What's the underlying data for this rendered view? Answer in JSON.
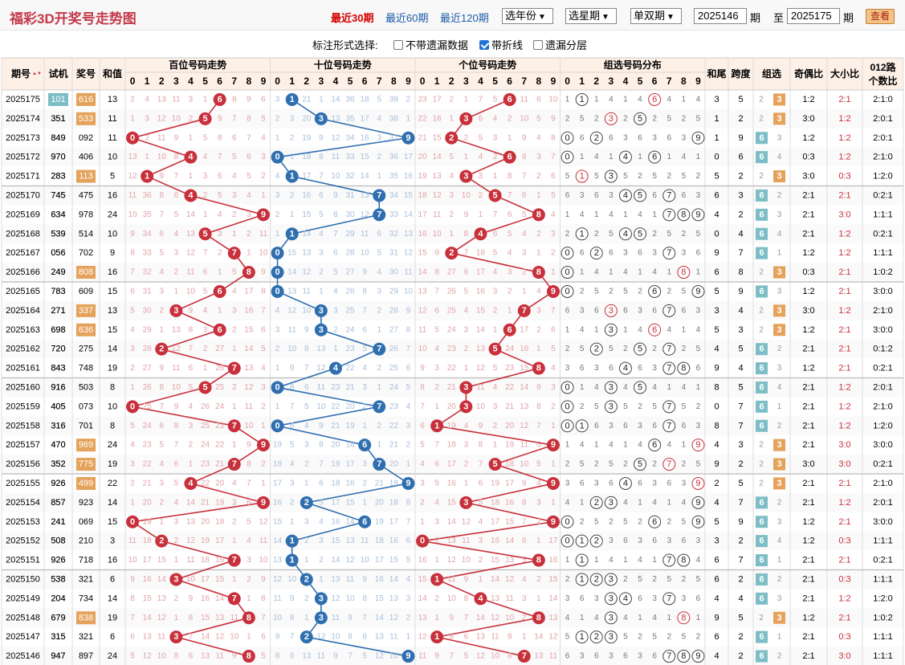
{
  "header": {
    "title": "福彩3D开奖号走势图",
    "quick": [
      "最近30期",
      "最近60期",
      "最近120期"
    ],
    "year_select": "选年份",
    "week_select": "选星期",
    "parity_select": "单双期",
    "from_issue": "2025146",
    "issue_label": "期",
    "to_label": "至",
    "to_issue": "2025175",
    "query_label": "查看"
  },
  "options": {
    "label": "标注形式选择:",
    "items": [
      {
        "label": "不带遗漏数据",
        "checked": false
      },
      {
        "label": "带折线",
        "checked": true
      },
      {
        "label": "遗漏分层",
        "checked": false
      }
    ]
  },
  "columns": {
    "issue": "期号",
    "test": "试机",
    "prize": "奖号",
    "sum": "和值",
    "hundreds": "百位号码走势",
    "tens": "十位号码走势",
    "units": "个位号码走势",
    "group": "组选号码分布",
    "tail": "和尾",
    "span": "跨度",
    "grouptype": "组选",
    "oddeven": "奇偶比",
    "bigsmall": "大小比",
    "road": "012路",
    "road2": "个数比"
  },
  "colors": {
    "red": "#c8303b",
    "blue": "#2f6fb0",
    "teal": "#7dbdc5",
    "orange": "#e4a25a"
  },
  "rows": [
    {
      "issue": "2025175",
      "test": "101",
      "prize": "616",
      "sum": "13",
      "tail": "3",
      "span": "5",
      "type": "3",
      "oddeven": "1:2",
      "bigsmall": "2:1",
      "road": "2:1:0"
    },
    {
      "issue": "2025174",
      "test": "351",
      "prize": "533",
      "sum": "11",
      "tail": "1",
      "span": "2",
      "type": "3",
      "oddeven": "3:0",
      "bigsmall": "1:2",
      "road": "2:0:1"
    },
    {
      "issue": "2025173",
      "test": "849",
      "prize": "092",
      "sum": "11",
      "tail": "1",
      "span": "9",
      "type": "6",
      "oddeven": "1:2",
      "bigsmall": "1:2",
      "road": "2:0:1"
    },
    {
      "issue": "2025172",
      "test": "970",
      "prize": "406",
      "sum": "10",
      "tail": "0",
      "span": "6",
      "type": "6",
      "oddeven": "0:3",
      "bigsmall": "1:2",
      "road": "2:1:0"
    },
    {
      "issue": "2025171",
      "test": "283",
      "prize": "113",
      "sum": "5",
      "tail": "5",
      "span": "2",
      "type": "3",
      "oddeven": "3:0",
      "bigsmall": "0:3",
      "road": "1:2:0"
    },
    {
      "issue": "2025170",
      "test": "745",
      "prize": "475",
      "sum": "16",
      "tail": "6",
      "span": "3",
      "type": "6",
      "oddeven": "2:1",
      "bigsmall": "2:1",
      "road": "0:2:1"
    },
    {
      "issue": "2025169",
      "test": "634",
      "prize": "978",
      "sum": "24",
      "tail": "4",
      "span": "2",
      "type": "6",
      "oddeven": "2:1",
      "bigsmall": "3:0",
      "road": "1:1:1"
    },
    {
      "issue": "2025168",
      "test": "539",
      "prize": "514",
      "sum": "10",
      "tail": "0",
      "span": "4",
      "type": "6",
      "oddeven": "2:1",
      "bigsmall": "1:2",
      "road": "0:2:1"
    },
    {
      "issue": "2025167",
      "test": "056",
      "prize": "702",
      "sum": "9",
      "tail": "9",
      "span": "7",
      "type": "6",
      "oddeven": "1:2",
      "bigsmall": "1:2",
      "road": "1:1:1"
    },
    {
      "issue": "2025166",
      "test": "249",
      "prize": "808",
      "sum": "16",
      "tail": "6",
      "span": "8",
      "type": "3",
      "oddeven": "0:3",
      "bigsmall": "2:1",
      "road": "1:0:2"
    },
    {
      "issue": "2025165",
      "test": "783",
      "prize": "609",
      "sum": "15",
      "tail": "5",
      "span": "9",
      "type": "6",
      "oddeven": "1:2",
      "bigsmall": "2:1",
      "road": "3:0:0"
    },
    {
      "issue": "2025164",
      "test": "271",
      "prize": "337",
      "sum": "13",
      "tail": "3",
      "span": "4",
      "type": "3",
      "oddeven": "3:0",
      "bigsmall": "1:2",
      "road": "2:1:0"
    },
    {
      "issue": "2025163",
      "test": "698",
      "prize": "636",
      "sum": "15",
      "tail": "5",
      "span": "3",
      "type": "3",
      "oddeven": "1:2",
      "bigsmall": "2:1",
      "road": "3:0:0"
    },
    {
      "issue": "2025162",
      "test": "720",
      "prize": "275",
      "sum": "14",
      "tail": "4",
      "span": "5",
      "type": "6",
      "oddeven": "2:1",
      "bigsmall": "2:1",
      "road": "0:1:2"
    },
    {
      "issue": "2025161",
      "test": "843",
      "prize": "748",
      "sum": "19",
      "tail": "9",
      "span": "4",
      "type": "6",
      "oddeven": "1:2",
      "bigsmall": "2:1",
      "road": "0:2:1"
    },
    {
      "issue": "2025160",
      "test": "916",
      "prize": "503",
      "sum": "8",
      "tail": "8",
      "span": "5",
      "type": "6",
      "oddeven": "2:1",
      "bigsmall": "1:2",
      "road": "2:0:1"
    },
    {
      "issue": "2025159",
      "test": "405",
      "prize": "073",
      "sum": "10",
      "tail": "0",
      "span": "7",
      "type": "6",
      "oddeven": "2:1",
      "bigsmall": "1:2",
      "road": "2:1:0"
    },
    {
      "issue": "2025158",
      "test": "316",
      "prize": "701",
      "sum": "8",
      "tail": "8",
      "span": "7",
      "type": "6",
      "oddeven": "2:1",
      "bigsmall": "1:2",
      "road": "1:2:0"
    },
    {
      "issue": "2025157",
      "test": "470",
      "prize": "969",
      "sum": "24",
      "tail": "4",
      "span": "3",
      "type": "3",
      "oddeven": "2:1",
      "bigsmall": "3:0",
      "road": "3:0:0"
    },
    {
      "issue": "2025156",
      "test": "352",
      "prize": "775",
      "sum": "19",
      "tail": "9",
      "span": "2",
      "type": "3",
      "oddeven": "3:0",
      "bigsmall": "3:0",
      "road": "0:2:1"
    },
    {
      "issue": "2025155",
      "test": "926",
      "prize": "499",
      "sum": "22",
      "tail": "2",
      "span": "5",
      "type": "3",
      "oddeven": "2:1",
      "bigsmall": "2:1",
      "road": "2:1:0"
    },
    {
      "issue": "2025154",
      "test": "857",
      "prize": "923",
      "sum": "14",
      "tail": "4",
      "span": "7",
      "type": "6",
      "oddeven": "2:1",
      "bigsmall": "1:2",
      "road": "2:0:1"
    },
    {
      "issue": "2025153",
      "test": "241",
      "prize": "069",
      "sum": "15",
      "tail": "5",
      "span": "9",
      "type": "6",
      "oddeven": "1:2",
      "bigsmall": "2:1",
      "road": "3:0:0"
    },
    {
      "issue": "2025152",
      "test": "508",
      "prize": "210",
      "sum": "3",
      "tail": "3",
      "span": "2",
      "type": "6",
      "oddeven": "1:2",
      "bigsmall": "0:3",
      "road": "1:1:1"
    },
    {
      "issue": "2025151",
      "test": "926",
      "prize": "718",
      "sum": "16",
      "tail": "6",
      "span": "7",
      "type": "6",
      "oddeven": "2:1",
      "bigsmall": "2:1",
      "road": "0:2:1"
    },
    {
      "issue": "2025150",
      "test": "538",
      "prize": "321",
      "sum": "6",
      "tail": "6",
      "span": "2",
      "type": "6",
      "oddeven": "2:1",
      "bigsmall": "0:3",
      "road": "1:1:1"
    },
    {
      "issue": "2025149",
      "test": "204",
      "prize": "734",
      "sum": "14",
      "tail": "4",
      "span": "4",
      "type": "6",
      "oddeven": "2:1",
      "bigsmall": "1:2",
      "road": "1:2:0"
    },
    {
      "issue": "2025148",
      "test": "679",
      "prize": "838",
      "sum": "19",
      "tail": "9",
      "span": "5",
      "type": "3",
      "oddeven": "1:2",
      "bigsmall": "2:1",
      "road": "1:0:2"
    },
    {
      "issue": "2025147",
      "test": "315",
      "prize": "321",
      "sum": "6",
      "tail": "6",
      "span": "2",
      "type": "6",
      "oddeven": "2:1",
      "bigsmall": "0:3",
      "road": "1:1:1"
    },
    {
      "issue": "2025146",
      "test": "947",
      "prize": "897",
      "sum": "24",
      "tail": "4",
      "span": "2",
      "type": "6",
      "oddeven": "2:1",
      "bigsmall": "3:0",
      "road": "1:1:1"
    }
  ]
}
